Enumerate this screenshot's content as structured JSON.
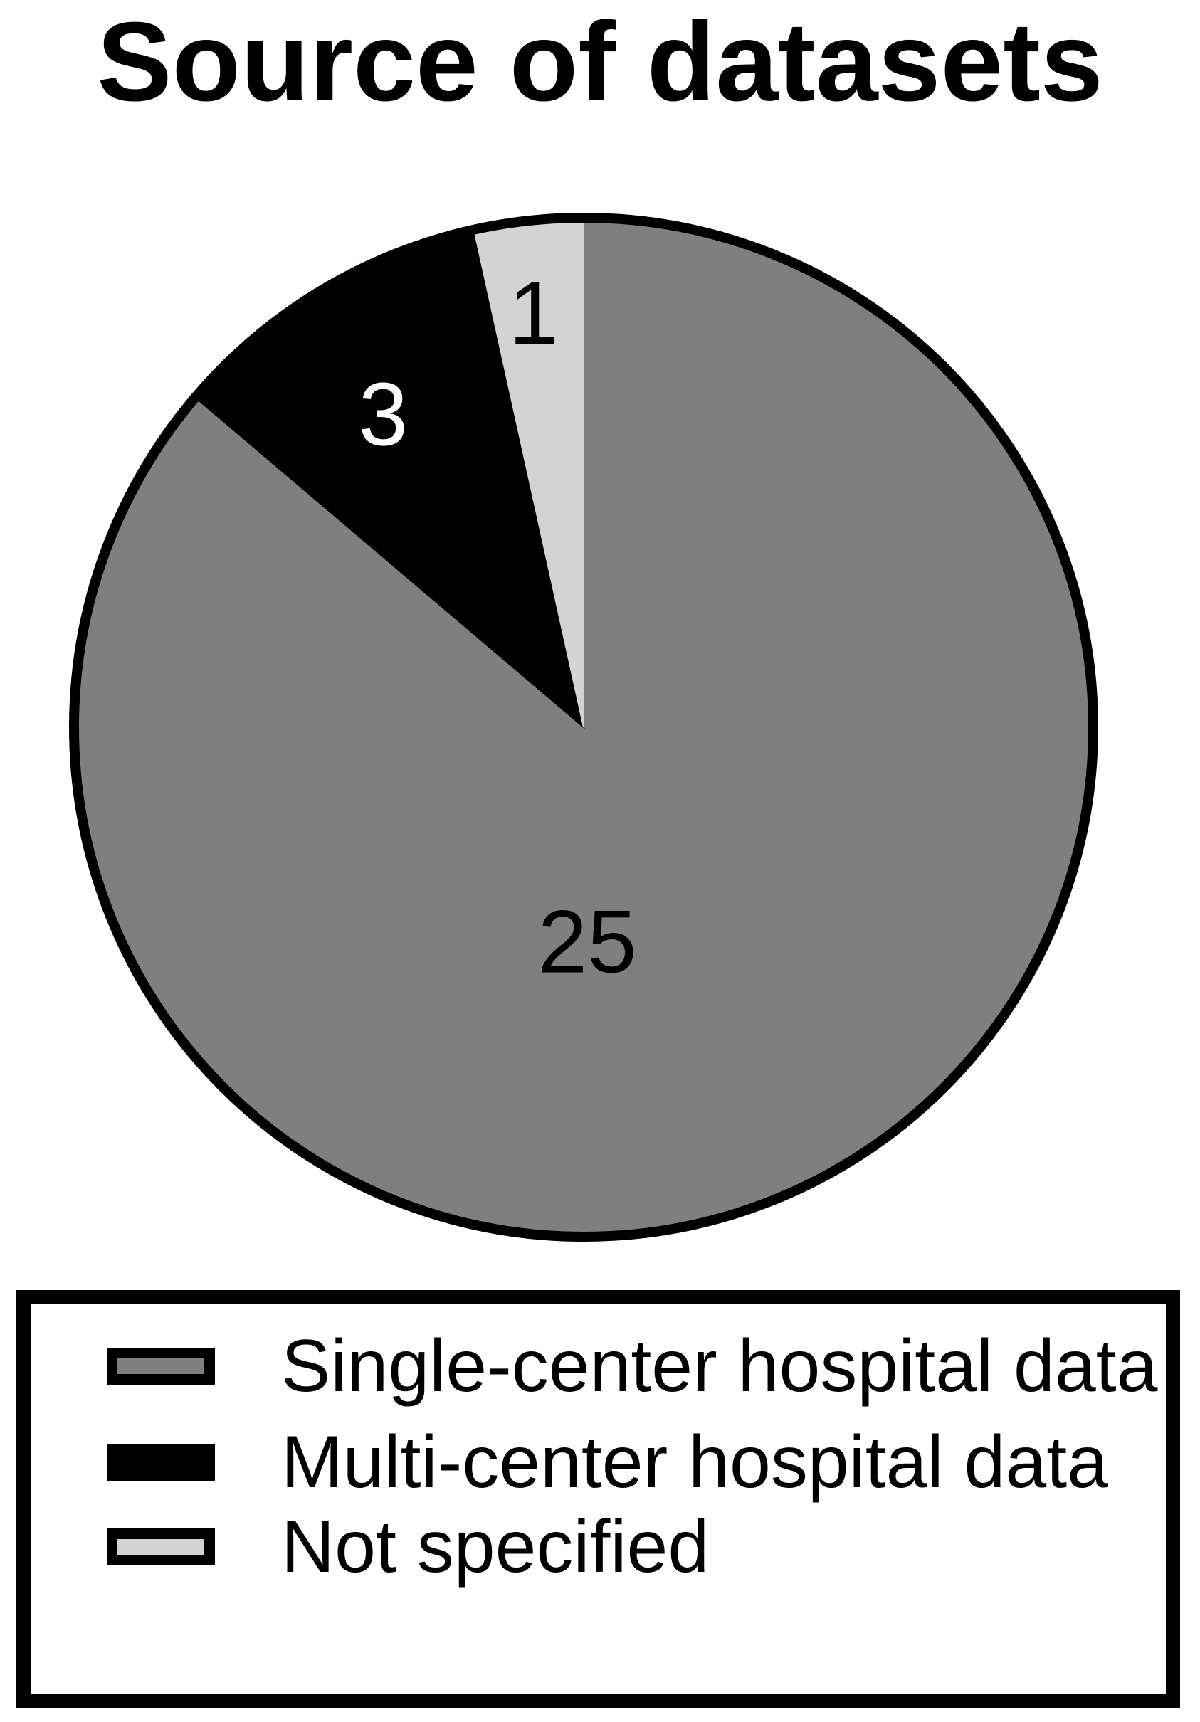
{
  "chart_data": {
    "type": "pie",
    "title": "Source of datasets",
    "total": 29,
    "start_angle": "12 o'clock",
    "direction": "clockwise",
    "outline_color": "#000000",
    "background_color": "#ffffff",
    "legend_position": "bottom",
    "values_shown_on_slices": true,
    "slices": [
      {
        "label": "Single-center hospital data",
        "value": 25,
        "color": "#7f7f7f",
        "label_color": "#000000",
        "label_angle_deg": 179,
        "label_dist_frac": 0.42
      },
      {
        "label": "Multi-center hospital data",
        "value": 3,
        "color": "#000000",
        "label_color": "#ffffff",
        "label_angle_deg": 327.4,
        "label_dist_frac": 0.73
      },
      {
        "label": "Not specified",
        "value": 1,
        "color": "#d3d3d3",
        "label_color": "#000000",
        "label_angle_deg": 353.1,
        "label_dist_frac": 0.82
      }
    ]
  }
}
